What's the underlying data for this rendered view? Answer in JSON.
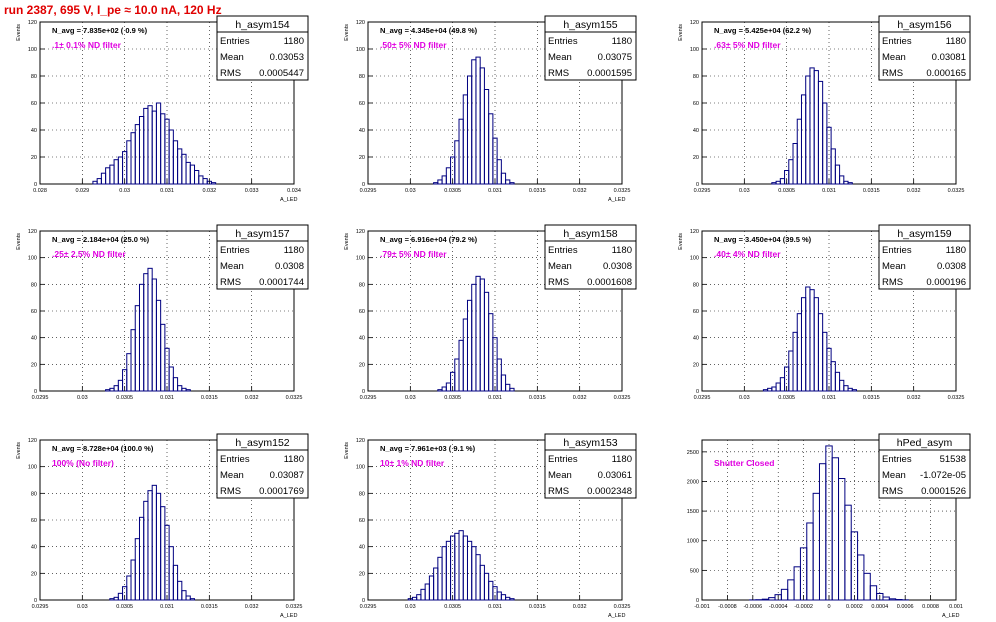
{
  "title": "run 2387,   695 V, I_pe ≈ 10.0 nA, 120 Hz",
  "colors": {
    "title": "#e00000",
    "filter_label": "#e000e0",
    "histogram": "#000080",
    "grid": "#000000"
  },
  "chart_data": [
    {
      "type": "bar",
      "name": "h_asym154",
      "stats": [
        [
          "Entries",
          "1180"
        ],
        [
          "Mean",
          "0.03053"
        ],
        [
          "RMS",
          "0.0005447"
        ]
      ],
      "navg": "N_avg = 7.835e+02 ( 0.9 %)",
      "filter": ".1± 0.1% ND filter",
      "xlabel": "A_LED",
      "ylabel": "Events",
      "xlim": [
        0.028,
        0.034
      ],
      "ylim": [
        0,
        120
      ],
      "xticks": [
        [
          0.028,
          "0.028"
        ],
        [
          0.029,
          "0.029"
        ],
        [
          0.03,
          "0.03"
        ],
        [
          0.031,
          "0.031"
        ],
        [
          0.032,
          "0.032"
        ],
        [
          0.033,
          "0.033"
        ],
        [
          0.034,
          "0.034"
        ]
      ],
      "yticks": [
        [
          0,
          "0"
        ],
        [
          20,
          "20"
        ],
        [
          40,
          "40"
        ],
        [
          60,
          "60"
        ],
        [
          80,
          "80"
        ],
        [
          100,
          "100"
        ],
        [
          120,
          "120"
        ]
      ],
      "x": [
        0.0293,
        0.0294,
        0.0295,
        0.0296,
        0.0297,
        0.0298,
        0.0299,
        0.03,
        0.0301,
        0.0302,
        0.0303,
        0.0304,
        0.0305,
        0.0306,
        0.0307,
        0.0308,
        0.0309,
        0.031,
        0.0311,
        0.0312,
        0.0313,
        0.0314,
        0.0315,
        0.0316,
        0.0317,
        0.0318,
        0.0319,
        0.032,
        0.0321
      ],
      "values": [
        2,
        4,
        8,
        12,
        14,
        18,
        20,
        24,
        32,
        38,
        44,
        50,
        56,
        58,
        54,
        60,
        52,
        48,
        40,
        32,
        26,
        22,
        16,
        14,
        10,
        6,
        4,
        2,
        1
      ]
    },
    {
      "type": "bar",
      "name": "h_asym155",
      "stats": [
        [
          "Entries",
          "1180"
        ],
        [
          "Mean",
          "0.03075"
        ],
        [
          "RMS",
          "0.0001595"
        ]
      ],
      "navg": "N_avg = 4.345e+04 (49.8 %)",
      "filter": ".50± 5% ND filter",
      "xlabel": "A_LED",
      "ylabel": "Events",
      "xlim": [
        0.0295,
        0.0325
      ],
      "ylim": [
        0,
        120
      ],
      "xticks": [
        [
          0.0295,
          "0.0295"
        ],
        [
          0.03,
          "0.03"
        ],
        [
          0.0305,
          "0.0305"
        ],
        [
          0.031,
          "0.031"
        ],
        [
          0.0315,
          "0.0315"
        ],
        [
          0.032,
          "0.032"
        ],
        [
          0.0325,
          "0.0325"
        ]
      ],
      "yticks": [
        [
          0,
          "0"
        ],
        [
          20,
          "20"
        ],
        [
          40,
          "40"
        ],
        [
          60,
          "60"
        ],
        [
          80,
          "80"
        ],
        [
          100,
          "100"
        ],
        [
          120,
          "120"
        ]
      ],
      "x": [
        0.0303,
        0.03035,
        0.0304,
        0.03045,
        0.0305,
        0.03055,
        0.0306,
        0.03065,
        0.0307,
        0.03075,
        0.0308,
        0.03085,
        0.0309,
        0.03095,
        0.031,
        0.03105,
        0.0311,
        0.03115,
        0.0312
      ],
      "values": [
        1,
        3,
        6,
        12,
        20,
        32,
        48,
        66,
        80,
        92,
        94,
        86,
        70,
        52,
        34,
        18,
        8,
        3,
        1
      ]
    },
    {
      "type": "bar",
      "name": "h_asym156",
      "stats": [
        [
          "Entries",
          "1180"
        ],
        [
          "Mean",
          "0.03081"
        ],
        [
          "RMS",
          "0.000165"
        ]
      ],
      "navg": "N_avg = 5.425e+04 (62.2 %)",
      "filter": ".63± 5% ND filter",
      "xlabel": "",
      "ylabel": "Events",
      "xlim": [
        0.0295,
        0.0325
      ],
      "ylim": [
        0,
        120
      ],
      "xticks": [
        [
          0.0295,
          "0.0295"
        ],
        [
          0.03,
          "0.03"
        ],
        [
          0.0305,
          "0.0305"
        ],
        [
          0.031,
          "0.031"
        ],
        [
          0.0315,
          "0.0315"
        ],
        [
          0.032,
          "0.032"
        ],
        [
          0.0325,
          "0.0325"
        ]
      ],
      "yticks": [
        [
          0,
          "0"
        ],
        [
          20,
          "20"
        ],
        [
          40,
          "40"
        ],
        [
          60,
          "60"
        ],
        [
          80,
          "80"
        ],
        [
          100,
          "100"
        ],
        [
          120,
          "120"
        ]
      ],
      "x": [
        0.03035,
        0.0304,
        0.03045,
        0.0305,
        0.03055,
        0.0306,
        0.03065,
        0.0307,
        0.03075,
        0.0308,
        0.03085,
        0.0309,
        0.03095,
        0.031,
        0.03105,
        0.0311,
        0.03115,
        0.0312,
        0.03125
      ],
      "values": [
        1,
        2,
        4,
        10,
        18,
        30,
        48,
        66,
        80,
        86,
        84,
        76,
        60,
        42,
        26,
        14,
        6,
        2,
        1
      ]
    },
    {
      "type": "bar",
      "name": "h_asym157",
      "stats": [
        [
          "Entries",
          "1180"
        ],
        [
          "Mean",
          "0.0308"
        ],
        [
          "RMS",
          "0.0001744"
        ]
      ],
      "navg": "N_avg = 2.184e+04 (25.0 %)",
      "filter": ".25± 2.5% ND filter",
      "xlabel": "",
      "ylabel": "Events",
      "xlim": [
        0.0295,
        0.0325
      ],
      "ylim": [
        0,
        120
      ],
      "xticks": [
        [
          0.0295,
          "0.0295"
        ],
        [
          0.03,
          "0.03"
        ],
        [
          0.0305,
          "0.0305"
        ],
        [
          0.031,
          "0.031"
        ],
        [
          0.0315,
          "0.0315"
        ],
        [
          0.032,
          "0.032"
        ],
        [
          0.0325,
          "0.0325"
        ]
      ],
      "yticks": [
        [
          0,
          "0"
        ],
        [
          20,
          "20"
        ],
        [
          40,
          "40"
        ],
        [
          60,
          "60"
        ],
        [
          80,
          "80"
        ],
        [
          100,
          "100"
        ],
        [
          120,
          "120"
        ]
      ],
      "x": [
        0.0303,
        0.03035,
        0.0304,
        0.03045,
        0.0305,
        0.03055,
        0.0306,
        0.03065,
        0.0307,
        0.03075,
        0.0308,
        0.03085,
        0.0309,
        0.03095,
        0.031,
        0.03105,
        0.0311,
        0.03115,
        0.0312,
        0.03125
      ],
      "values": [
        1,
        2,
        4,
        8,
        16,
        28,
        46,
        64,
        80,
        88,
        92,
        84,
        68,
        50,
        32,
        18,
        10,
        4,
        2,
        1
      ]
    },
    {
      "type": "bar",
      "name": "h_asym158",
      "stats": [
        [
          "Entries",
          "1180"
        ],
        [
          "Mean",
          "0.0308"
        ],
        [
          "RMS",
          "0.0001608"
        ]
      ],
      "navg": "N_avg = 6.916e+04 (79.2 %)",
      "filter": ".79± 5% ND filter",
      "xlabel": "",
      "ylabel": "Events",
      "xlim": [
        0.0295,
        0.0325
      ],
      "ylim": [
        0,
        120
      ],
      "xticks": [
        [
          0.0295,
          "0.0295"
        ],
        [
          0.03,
          "0.03"
        ],
        [
          0.0305,
          "0.0305"
        ],
        [
          0.031,
          "0.031"
        ],
        [
          0.0315,
          "0.0315"
        ],
        [
          0.032,
          "0.032"
        ],
        [
          0.0325,
          "0.0325"
        ]
      ],
      "yticks": [
        [
          0,
          "0"
        ],
        [
          20,
          "20"
        ],
        [
          40,
          "40"
        ],
        [
          60,
          "60"
        ],
        [
          80,
          "80"
        ],
        [
          100,
          "100"
        ],
        [
          120,
          "120"
        ]
      ],
      "x": [
        0.03035,
        0.0304,
        0.03045,
        0.0305,
        0.03055,
        0.0306,
        0.03065,
        0.0307,
        0.03075,
        0.0308,
        0.03085,
        0.0309,
        0.03095,
        0.031,
        0.03105,
        0.0311,
        0.03115,
        0.0312
      ],
      "values": [
        1,
        3,
        6,
        14,
        24,
        38,
        54,
        68,
        80,
        86,
        84,
        74,
        58,
        40,
        24,
        12,
        5,
        2
      ]
    },
    {
      "type": "bar",
      "name": "h_asym159",
      "stats": [
        [
          "Entries",
          "1180"
        ],
        [
          "Mean",
          "0.0308"
        ],
        [
          "RMS",
          "0.000196"
        ]
      ],
      "navg": "N_avg = 3.450e+04 (39.5 %)",
      "filter": ".40± 4% ND filter",
      "xlabel": "",
      "ylabel": "Events",
      "xlim": [
        0.0295,
        0.0325
      ],
      "ylim": [
        0,
        120
      ],
      "xticks": [
        [
          0.0295,
          "0.0295"
        ],
        [
          0.03,
          "0.03"
        ],
        [
          0.0305,
          "0.0305"
        ],
        [
          0.031,
          "0.031"
        ],
        [
          0.0315,
          "0.0315"
        ],
        [
          0.032,
          "0.032"
        ],
        [
          0.0325,
          "0.0325"
        ]
      ],
      "yticks": [
        [
          0,
          "0"
        ],
        [
          20,
          "20"
        ],
        [
          40,
          "40"
        ],
        [
          60,
          "60"
        ],
        [
          80,
          "80"
        ],
        [
          100,
          "100"
        ],
        [
          120,
          "120"
        ]
      ],
      "x": [
        0.03025,
        0.0303,
        0.03035,
        0.0304,
        0.03045,
        0.0305,
        0.03055,
        0.0306,
        0.03065,
        0.0307,
        0.03075,
        0.0308,
        0.03085,
        0.0309,
        0.03095,
        0.031,
        0.03105,
        0.0311,
        0.03115,
        0.0312,
        0.03125,
        0.0313
      ],
      "values": [
        1,
        2,
        3,
        6,
        10,
        18,
        30,
        44,
        58,
        70,
        78,
        76,
        70,
        58,
        44,
        32,
        22,
        14,
        8,
        4,
        2,
        1
      ]
    },
    {
      "type": "bar",
      "name": "h_asym152",
      "stats": [
        [
          "Entries",
          "1180"
        ],
        [
          "Mean",
          "0.03087"
        ],
        [
          "RMS",
          "0.0001769"
        ]
      ],
      "navg": "N_avg = 8.728e+04 (100.0 %)",
      "filter": "100% (No filter)",
      "xlabel": "A_LED",
      "ylabel": "Events",
      "xlim": [
        0.0295,
        0.0325
      ],
      "ylim": [
        0,
        120
      ],
      "xticks": [
        [
          0.0295,
          "0.0295"
        ],
        [
          0.03,
          "0.03"
        ],
        [
          0.0305,
          "0.0305"
        ],
        [
          0.031,
          "0.031"
        ],
        [
          0.0315,
          "0.0315"
        ],
        [
          0.032,
          "0.032"
        ],
        [
          0.0325,
          "0.0325"
        ]
      ],
      "yticks": [
        [
          0,
          "0"
        ],
        [
          20,
          "20"
        ],
        [
          40,
          "40"
        ],
        [
          60,
          "60"
        ],
        [
          80,
          "80"
        ],
        [
          100,
          "100"
        ],
        [
          120,
          "120"
        ]
      ],
      "x": [
        0.03035,
        0.0304,
        0.03045,
        0.0305,
        0.03055,
        0.0306,
        0.03065,
        0.0307,
        0.03075,
        0.0308,
        0.03085,
        0.0309,
        0.03095,
        0.031,
        0.03105,
        0.0311,
        0.03115,
        0.0312,
        0.03125,
        0.0313
      ],
      "values": [
        1,
        2,
        5,
        10,
        18,
        30,
        46,
        62,
        74,
        82,
        86,
        80,
        70,
        56,
        40,
        26,
        14,
        7,
        3,
        1
      ]
    },
    {
      "type": "bar",
      "name": "h_asym153",
      "stats": [
        [
          "Entries",
          "1180"
        ],
        [
          "Mean",
          "0.03061"
        ],
        [
          "RMS",
          "0.0002348"
        ]
      ],
      "navg": "N_avg = 7.961e+03 ( 9.1 %)",
      "filter": "10± 1% ND filter",
      "xlabel": "A_LED",
      "ylabel": "Events",
      "xlim": [
        0.0295,
        0.0325
      ],
      "ylim": [
        0,
        120
      ],
      "xticks": [
        [
          0.0295,
          "0.0295"
        ],
        [
          0.03,
          "0.03"
        ],
        [
          0.0305,
          "0.0305"
        ],
        [
          0.031,
          "0.031"
        ],
        [
          0.0315,
          "0.0315"
        ],
        [
          0.032,
          "0.032"
        ],
        [
          0.0325,
          "0.0325"
        ]
      ],
      "yticks": [
        [
          0,
          "0"
        ],
        [
          20,
          "20"
        ],
        [
          40,
          "40"
        ],
        [
          60,
          "60"
        ],
        [
          80,
          "80"
        ],
        [
          100,
          "100"
        ],
        [
          120,
          "120"
        ]
      ],
      "x": [
        0.03,
        0.03005,
        0.0301,
        0.03015,
        0.0302,
        0.03025,
        0.0303,
        0.03035,
        0.0304,
        0.03045,
        0.0305,
        0.03055,
        0.0306,
        0.03065,
        0.0307,
        0.03075,
        0.0308,
        0.03085,
        0.0309,
        0.03095,
        0.031,
        0.03105,
        0.0311,
        0.03115,
        0.0312
      ],
      "values": [
        1,
        2,
        4,
        8,
        12,
        18,
        24,
        32,
        40,
        44,
        48,
        50,
        52,
        48,
        44,
        40,
        34,
        26,
        20,
        14,
        10,
        6,
        4,
        2,
        1
      ]
    },
    {
      "type": "bar",
      "name": "hPed_asym",
      "stats": [
        [
          "Entries",
          "51538"
        ],
        [
          "Mean",
          "-1.072e-05"
        ],
        [
          "RMS",
          "0.0001526"
        ]
      ],
      "navg": "",
      "filter": "Shutter Closed",
      "xlabel": "A_LED",
      "ylabel": "",
      "xlim": [
        -0.001,
        0.001
      ],
      "ylim": [
        0,
        2700
      ],
      "xticks": [
        [
          -0.001,
          "-0.001"
        ],
        [
          -0.0008,
          "-0.0008"
        ],
        [
          -0.0006,
          "-0.0006"
        ],
        [
          -0.0004,
          "-0.0004"
        ],
        [
          -0.0002,
          "-0.0002"
        ],
        [
          0,
          "0"
        ],
        [
          0.0002,
          "0.0002"
        ],
        [
          0.0004,
          "0.0004"
        ],
        [
          0.0006,
          "0.0006"
        ],
        [
          0.0008,
          "0.0008"
        ],
        [
          0.001,
          "0.001"
        ]
      ],
      "yticks": [
        [
          0,
          "0"
        ],
        [
          500,
          "500"
        ],
        [
          1000,
          "1000"
        ],
        [
          1500,
          "1500"
        ],
        [
          2000,
          "2000"
        ],
        [
          2500,
          "2500"
        ]
      ],
      "x": [
        -0.0006,
        -0.00055,
        -0.0005,
        -0.00045,
        -0.0004,
        -0.00035,
        -0.0003,
        -0.00025,
        -0.0002,
        -0.00015,
        -0.0001,
        -5e-05,
        0.0,
        5e-05,
        0.0001,
        0.00015,
        0.0002,
        0.00025,
        0.0003,
        0.00035,
        0.0004,
        0.00045,
        0.0005,
        0.00055,
        0.0006
      ],
      "values": [
        2,
        5,
        14,
        40,
        90,
        180,
        340,
        560,
        880,
        1300,
        1800,
        2300,
        2600,
        2400,
        2050,
        1600,
        1150,
        760,
        450,
        240,
        110,
        50,
        20,
        8,
        3
      ]
    }
  ]
}
